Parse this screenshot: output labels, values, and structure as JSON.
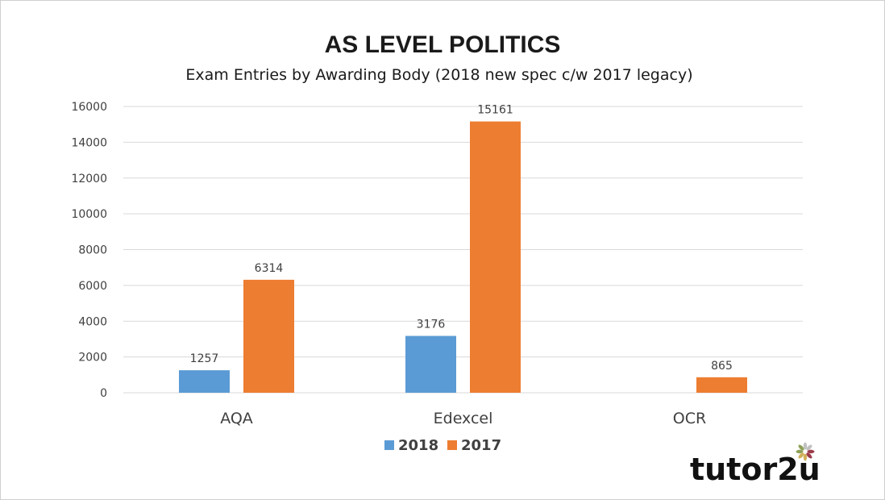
{
  "chart_data": {
    "type": "bar",
    "title": "AS LEVEL POLITICS",
    "subtitle": "Exam Entries by Awarding Body (2018 new spec c/w 2017 legacy)",
    "categories": [
      "AQA",
      "Edexcel",
      "OCR"
    ],
    "series": [
      {
        "name": "2018",
        "color": "#5b9bd5",
        "values": [
          1257,
          3176,
          null
        ],
        "labels": [
          "1257",
          "3176",
          ""
        ]
      },
      {
        "name": "2017",
        "color": "#ed7d31",
        "values": [
          6314,
          15161,
          865
        ],
        "labels": [
          "6314",
          "15161",
          "865"
        ]
      }
    ],
    "ylim": [
      0,
      16000
    ],
    "yticks": [
      0,
      2000,
      4000,
      6000,
      8000,
      10000,
      12000,
      14000,
      16000
    ],
    "grid": true,
    "legend": "bottom-center"
  },
  "logo": {
    "text": "tutor2u",
    "icon": "flower-icon",
    "petal_colors": [
      "#8b1a2b",
      "#c8a23c",
      "#7a8f3a",
      "#b5b5b5"
    ]
  }
}
